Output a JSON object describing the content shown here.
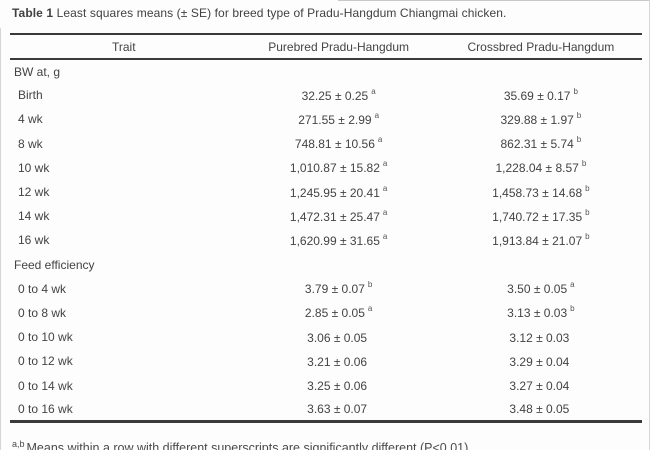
{
  "caption": {
    "label": "Table 1",
    "text": " Least squares means (± SE) for breed type of Pradu-Hangdum Chiangmai chicken."
  },
  "table": {
    "columns": [
      "Trait",
      "Purebred Pradu-Hangdum",
      "Crossbred Pradu-Hangdum"
    ],
    "sections": [
      {
        "header": "BW at, g",
        "rows": [
          {
            "trait": "Birth",
            "purebred": "32.25 ± 0.25",
            "purebred_sup": "a",
            "crossbred": "35.69 ± 0.17",
            "crossbred_sup": "b"
          },
          {
            "trait": "4 wk",
            "purebred": "271.55 ± 2.99",
            "purebred_sup": "a",
            "crossbred": "329.88 ± 1.97",
            "crossbred_sup": "b"
          },
          {
            "trait": "8 wk",
            "purebred": "748.81 ± 10.56",
            "purebred_sup": "a",
            "crossbred": "862.31 ± 5.74",
            "crossbred_sup": "b"
          },
          {
            "trait": "10 wk",
            "purebred": "1,010.87 ± 15.82",
            "purebred_sup": "a",
            "crossbred": "1,228.04 ± 8.57",
            "crossbred_sup": "b"
          },
          {
            "trait": "12 wk",
            "purebred": "1,245.95 ± 20.41",
            "purebred_sup": "a",
            "crossbred": "1,458.73 ± 14.68",
            "crossbred_sup": "b"
          },
          {
            "trait": "14 wk",
            "purebred": "1,472.31 ± 25.47",
            "purebred_sup": "a",
            "crossbred": "1,740.72 ± 17.35",
            "crossbred_sup": "b"
          },
          {
            "trait": "16 wk",
            "purebred": "1,620.99 ± 31.65",
            "purebred_sup": "a",
            "crossbred": "1,913.84 ± 21.07",
            "crossbred_sup": "b"
          }
        ]
      },
      {
        "header": "Feed efficiency",
        "rows": [
          {
            "trait": "0 to 4 wk",
            "purebred": "3.79 ± 0.07",
            "purebred_sup": "b",
            "crossbred": "3.50 ± 0.05",
            "crossbred_sup": "a"
          },
          {
            "trait": "0 to 8 wk",
            "purebred": "2.85 ± 0.05",
            "purebred_sup": "a",
            "crossbred": "3.13 ± 0.03",
            "crossbred_sup": "b"
          },
          {
            "trait": "0 to 10 wk",
            "purebred": "3.06 ± 0.05",
            "purebred_sup": "",
            "crossbred": "3.12 ± 0.03",
            "crossbred_sup": ""
          },
          {
            "trait": "0 to 12 wk",
            "purebred": "3.21 ± 0.06",
            "purebred_sup": "",
            "crossbred": "3.29 ± 0.04",
            "crossbred_sup": ""
          },
          {
            "trait": "0 to 14 wk",
            "purebred": "3.25 ± 0.06",
            "purebred_sup": "",
            "crossbred": "3.27 ± 0.04",
            "crossbred_sup": ""
          },
          {
            "trait": "0 to 16 wk",
            "purebred": "3.63 ± 0.07",
            "purebred_sup": "",
            "crossbred": "3.48 ± 0.05",
            "crossbred_sup": ""
          }
        ]
      }
    ]
  },
  "footnote": {
    "sup": "a,b",
    "text": "Means within a row with different superscripts are significantly different (P<0.01)."
  }
}
